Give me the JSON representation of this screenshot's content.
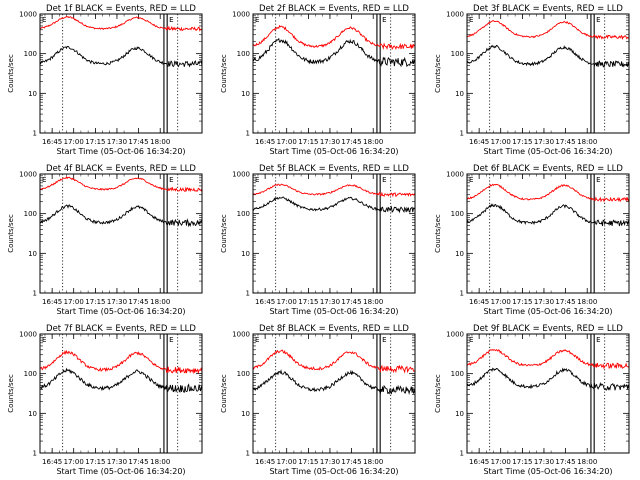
{
  "chart_data": [
    {
      "type": "line",
      "title": "Det 1f BLACK = Events, RED = LLD",
      "ylabel": "Counts/sec",
      "xlabel": "Start Time (05-Oct-06 16:34:20)",
      "x_ticks": [
        "16:45",
        "17:00",
        "17:15",
        "17:30",
        "17:45",
        "18:00"
      ],
      "y_ticks": [
        "1",
        "10",
        "100",
        "1000"
      ],
      "ylim": [
        1,
        1000
      ],
      "y_scale": "log",
      "flags": [
        "E",
        "E"
      ],
      "series": [
        {
          "name": "LLD",
          "color": "#ff0000",
          "base": 500,
          "amp": 0.3,
          "jitter": 0.02
        },
        {
          "name": "Events",
          "color": "#000000",
          "base": 70,
          "amp": 0.42,
          "jitter": 0.035
        }
      ]
    },
    {
      "type": "line",
      "title": "Det 2f BLACK = Events, RED = LLD",
      "ylabel": "Counts/sec",
      "xlabel": "Start Time (05-Oct-06 16:34:20)",
      "x_ticks": [
        "16:45",
        "17:00",
        "17:15",
        "17:30",
        "17:45",
        "18:00"
      ],
      "y_ticks": [
        "1",
        "10",
        "100",
        "1000"
      ],
      "ylim": [
        1,
        1000
      ],
      "y_scale": "log",
      "flags": [
        "E",
        "E"
      ],
      "series": [
        {
          "name": "LLD",
          "color": "#ff0000",
          "base": 200,
          "amp": 0.5,
          "jitter": 0.03
        },
        {
          "name": "Events",
          "color": "#000000",
          "base": 85,
          "amp": 0.55,
          "jitter": 0.05
        }
      ]
    },
    {
      "type": "line",
      "title": "Det 3f BLACK = Events, RED = LLD",
      "ylabel": "Counts/sec",
      "xlabel": "Start Time (05-Oct-06 16:34:20)",
      "x_ticks": [
        "16:45",
        "17:00",
        "17:15",
        "17:30",
        "17:45",
        "18:00"
      ],
      "y_ticks": [
        "1",
        "10",
        "100",
        "1000"
      ],
      "ylim": [
        1,
        1000
      ],
      "y_scale": "log",
      "flags": [
        "E",
        "E"
      ],
      "series": [
        {
          "name": "LLD",
          "color": "#ff0000",
          "base": 330,
          "amp": 0.4,
          "jitter": 0.02
        },
        {
          "name": "Events",
          "color": "#000000",
          "base": 70,
          "amp": 0.45,
          "jitter": 0.035
        }
      ]
    },
    {
      "type": "line",
      "title": "Det 4f BLACK = Events, RED = LLD",
      "ylabel": "Counts/sec",
      "xlabel": "Start Time (05-Oct-06 16:34:20)",
      "x_ticks": [
        "16:45",
        "17:00",
        "17:15",
        "17:30",
        "17:45",
        "18:00"
      ],
      "y_ticks": [
        "1",
        "10",
        "100",
        "1000"
      ],
      "ylim": [
        1,
        1000
      ],
      "y_scale": "log",
      "flags": [
        "E",
        "E"
      ],
      "series": [
        {
          "name": "LLD",
          "color": "#ff0000",
          "base": 480,
          "amp": 0.3,
          "jitter": 0.02
        },
        {
          "name": "Events",
          "color": "#000000",
          "base": 75,
          "amp": 0.42,
          "jitter": 0.035
        }
      ]
    },
    {
      "type": "line",
      "title": "Det 5f BLACK = Events, RED = LLD",
      "ylabel": "Counts/sec",
      "xlabel": "Start Time (05-Oct-06 16:34:20)",
      "x_ticks": [
        "16:45",
        "17:00",
        "17:15",
        "17:30",
        "17:45",
        "18:00"
      ],
      "y_ticks": [
        "1",
        "10",
        "100",
        "1000"
      ],
      "ylim": [
        1,
        1000
      ],
      "y_scale": "log",
      "flags": [
        "E",
        "E"
      ],
      "series": [
        {
          "name": "LLD",
          "color": "#ff0000",
          "base": 350,
          "amp": 0.25,
          "jitter": 0.02
        },
        {
          "name": "Events",
          "color": "#000000",
          "base": 150,
          "amp": 0.3,
          "jitter": 0.03
        }
      ]
    },
    {
      "type": "line",
      "title": "Det 6f BLACK = Events, RED = LLD",
      "ylabel": "Counts/sec",
      "xlabel": "Start Time (05-Oct-06 16:34:20)",
      "x_ticks": [
        "16:45",
        "17:00",
        "17:15",
        "17:30",
        "17:45",
        "18:00"
      ],
      "y_ticks": [
        "1",
        "10",
        "100",
        "1000"
      ],
      "ylim": [
        1,
        1000
      ],
      "y_scale": "log",
      "flags": [
        "E",
        "E"
      ],
      "series": [
        {
          "name": "LLD",
          "color": "#ff0000",
          "base": 280,
          "amp": 0.38,
          "jitter": 0.02
        },
        {
          "name": "Events",
          "color": "#000000",
          "base": 75,
          "amp": 0.45,
          "jitter": 0.035
        }
      ]
    },
    {
      "type": "line",
      "title": "Det 7f BLACK = Events, RED = LLD",
      "ylabel": "Counts/sec",
      "xlabel": "Start Time (05-Oct-06 16:34:20)",
      "x_ticks": [
        "16:45",
        "17:00",
        "17:15",
        "17:30",
        "17:45",
        "18:00"
      ],
      "y_ticks": [
        "1",
        "10",
        "100",
        "1000"
      ],
      "ylim": [
        1,
        1000
      ],
      "y_scale": "log",
      "flags": [
        "E",
        "E"
      ],
      "series": [
        {
          "name": "LLD",
          "color": "#ff0000",
          "base": 160,
          "amp": 0.45,
          "jitter": 0.035
        },
        {
          "name": "Events",
          "color": "#000000",
          "base": 55,
          "amp": 0.45,
          "jitter": 0.045
        }
      ]
    },
    {
      "type": "line",
      "title": "Det 8f BLACK = Events, RED = LLD",
      "ylabel": "Counts/sec",
      "xlabel": "Start Time (05-Oct-06 16:34:20)",
      "x_ticks": [
        "16:45",
        "17:00",
        "17:15",
        "17:30",
        "17:45",
        "18:00"
      ],
      "y_ticks": [
        "1",
        "10",
        "100",
        "1000"
      ],
      "ylim": [
        1,
        1000
      ],
      "y_scale": "log",
      "flags": [
        "E",
        "E"
      ],
      "series": [
        {
          "name": "LLD",
          "color": "#ff0000",
          "base": 170,
          "amp": 0.45,
          "jitter": 0.035
        },
        {
          "name": "Events",
          "color": "#000000",
          "base": 50,
          "amp": 0.45,
          "jitter": 0.045
        }
      ]
    },
    {
      "type": "line",
      "title": "Det 9f BLACK = Events, RED = LLD",
      "ylabel": "Counts/sec",
      "xlabel": "Start Time (05-Oct-06 16:34:20)",
      "x_ticks": [
        "16:45",
        "17:00",
        "17:15",
        "17:30",
        "17:45",
        "18:00"
      ],
      "y_ticks": [
        "1",
        "10",
        "100",
        "1000"
      ],
      "ylim": [
        1,
        1000
      ],
      "y_scale": "log",
      "flags": [
        "E",
        "E"
      ],
      "series": [
        {
          "name": "LLD",
          "color": "#ff0000",
          "base": 200,
          "amp": 0.4,
          "jitter": 0.03
        },
        {
          "name": "Events",
          "color": "#000000",
          "base": 60,
          "amp": 0.45,
          "jitter": 0.04
        }
      ]
    }
  ]
}
